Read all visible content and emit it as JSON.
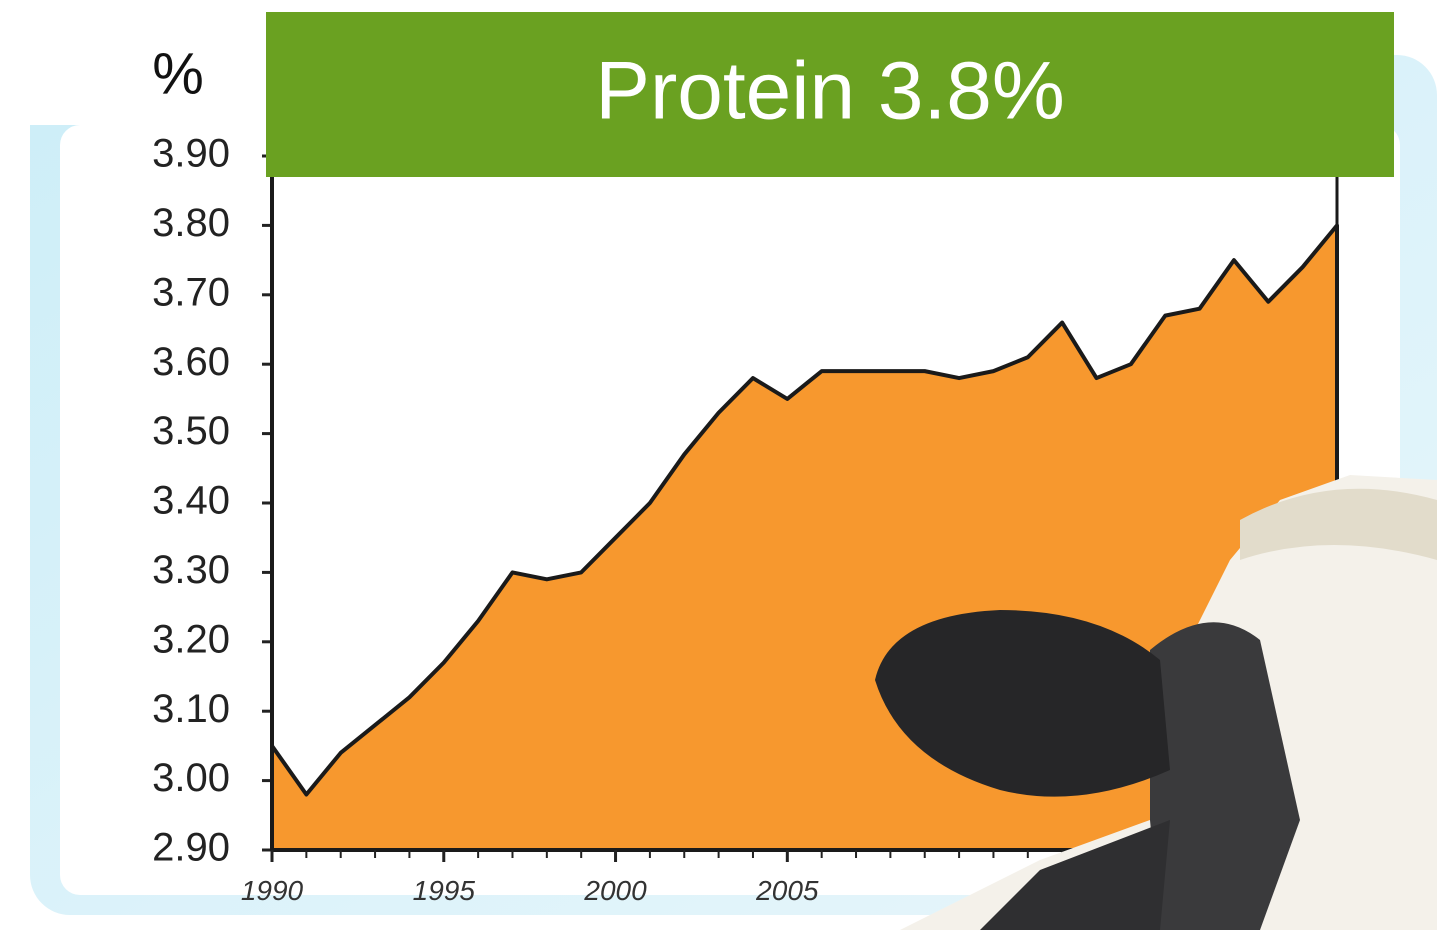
{
  "chart_data": {
    "type": "area",
    "title": "Protein 3.8%",
    "y_label": "%",
    "x": [
      1990,
      1991,
      1992,
      1993,
      1994,
      1995,
      1996,
      1997,
      1998,
      1999,
      2000,
      2001,
      2002,
      2003,
      2004,
      2005,
      2006,
      2007,
      2008,
      2009,
      2010,
      2011,
      2012,
      2013,
      2014,
      2015,
      2016,
      2017,
      2018,
      2019,
      2020,
      2021
    ],
    "values": [
      3.05,
      2.98,
      3.04,
      3.08,
      3.12,
      3.17,
      3.23,
      3.3,
      3.29,
      3.3,
      3.35,
      3.4,
      3.47,
      3.53,
      3.58,
      3.55,
      3.59,
      3.59,
      3.59,
      3.59,
      3.58,
      3.59,
      3.61,
      3.66,
      3.58,
      3.6,
      3.67,
      3.68,
      3.75,
      3.69,
      3.74,
      3.8
    ],
    "color": "#f7982e",
    "xlim": [
      1990,
      2021
    ],
    "xticks": [
      1990,
      1995,
      2000,
      2005
    ],
    "ylim": [
      2.9,
      3.9
    ],
    "yticks": [
      {
        "value": 2.9,
        "label": "2.90"
      },
      {
        "value": 3.0,
        "label": "3.00"
      },
      {
        "value": 3.1,
        "label": "3.10"
      },
      {
        "value": 3.2,
        "label": "3.20"
      },
      {
        "value": 3.3,
        "label": "3.30"
      },
      {
        "value": 3.4,
        "label": "3.40"
      },
      {
        "value": 3.5,
        "label": "3.50"
      },
      {
        "value": 3.6,
        "label": "3.60"
      },
      {
        "value": 3.7,
        "label": "3.70"
      },
      {
        "value": 3.8,
        "label": "3.80"
      },
      {
        "value": 3.9,
        "label": "3.90"
      }
    ]
  }
}
